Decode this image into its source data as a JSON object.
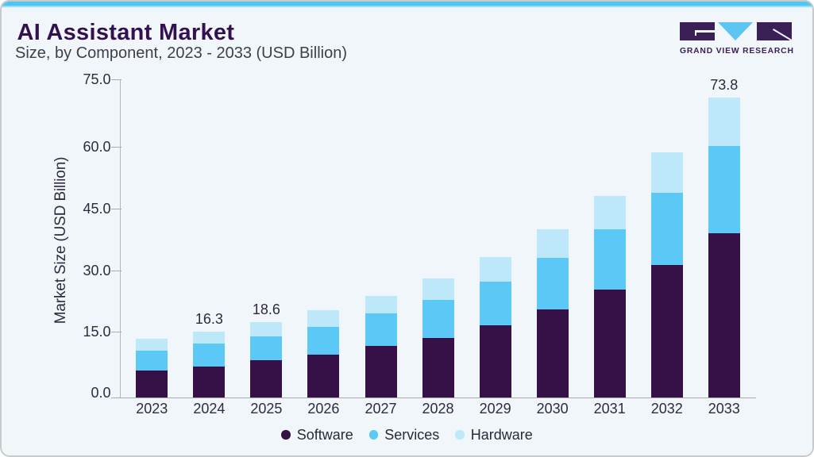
{
  "card": {
    "background": "#f1f6fa",
    "border_color": "#c9c9c9",
    "top_strip_color": "#4ec6f2"
  },
  "header": {
    "title": "AI Assistant Market",
    "subtitle": "Size, by Component, 2023 - 2033 (USD Billion)",
    "title_color": "#331150",
    "subtitle_color": "#3c4149"
  },
  "logo": {
    "brand": "GRAND VIEW RESEARCH",
    "purple": "#3a2057",
    "blue": "#5cc5f1"
  },
  "chart_data": {
    "type": "bar",
    "stacked": true,
    "title": "AI Assistant Market",
    "subtitle": "Size, by Component, 2023 - 2033 (USD Billion)",
    "xlabel": "",
    "ylabel": "Market Size (USD Billion)",
    "ylim": [
      0,
      75
    ],
    "ytick_labels": [
      "0.0",
      "15.0",
      "30.0",
      "45.0",
      "60.0",
      "75.0"
    ],
    "grid": false,
    "legend_position": "bottom",
    "categories": [
      "2023",
      "2024",
      "2025",
      "2026",
      "2027",
      "2028",
      "2029",
      "2030",
      "2031",
      "2032",
      "2033"
    ],
    "series": [
      {
        "name": "Software",
        "color": "#351148",
        "values": [
          6.6,
          7.7,
          9.1,
          10.5,
          12.6,
          14.7,
          17.8,
          21.6,
          26.5,
          32.6,
          40.4
        ]
      },
      {
        "name": "Services",
        "color": "#5bc8f5",
        "values": [
          4.9,
          5.5,
          6.0,
          6.9,
          8.0,
          9.3,
          10.7,
          12.8,
          14.8,
          17.7,
          21.5
        ]
      },
      {
        "name": "Hardware",
        "color": "#bde8f9",
        "values": [
          2.9,
          3.1,
          3.5,
          4.1,
          4.3,
          5.2,
          6.1,
          7.0,
          8.3,
          10.0,
          11.9
        ]
      }
    ],
    "totals": [
      14.4,
      16.3,
      18.6,
      21.5,
      24.9,
      29.2,
      34.6,
      41.4,
      49.6,
      60.3,
      73.8
    ],
    "data_labels": {
      "2024": "16.3",
      "2025": "18.6",
      "2033": "73.8"
    },
    "axis_text_color": "#2f2a40",
    "label_text_color": "#2f2a40",
    "legend_text_color": "#2b2936"
  }
}
